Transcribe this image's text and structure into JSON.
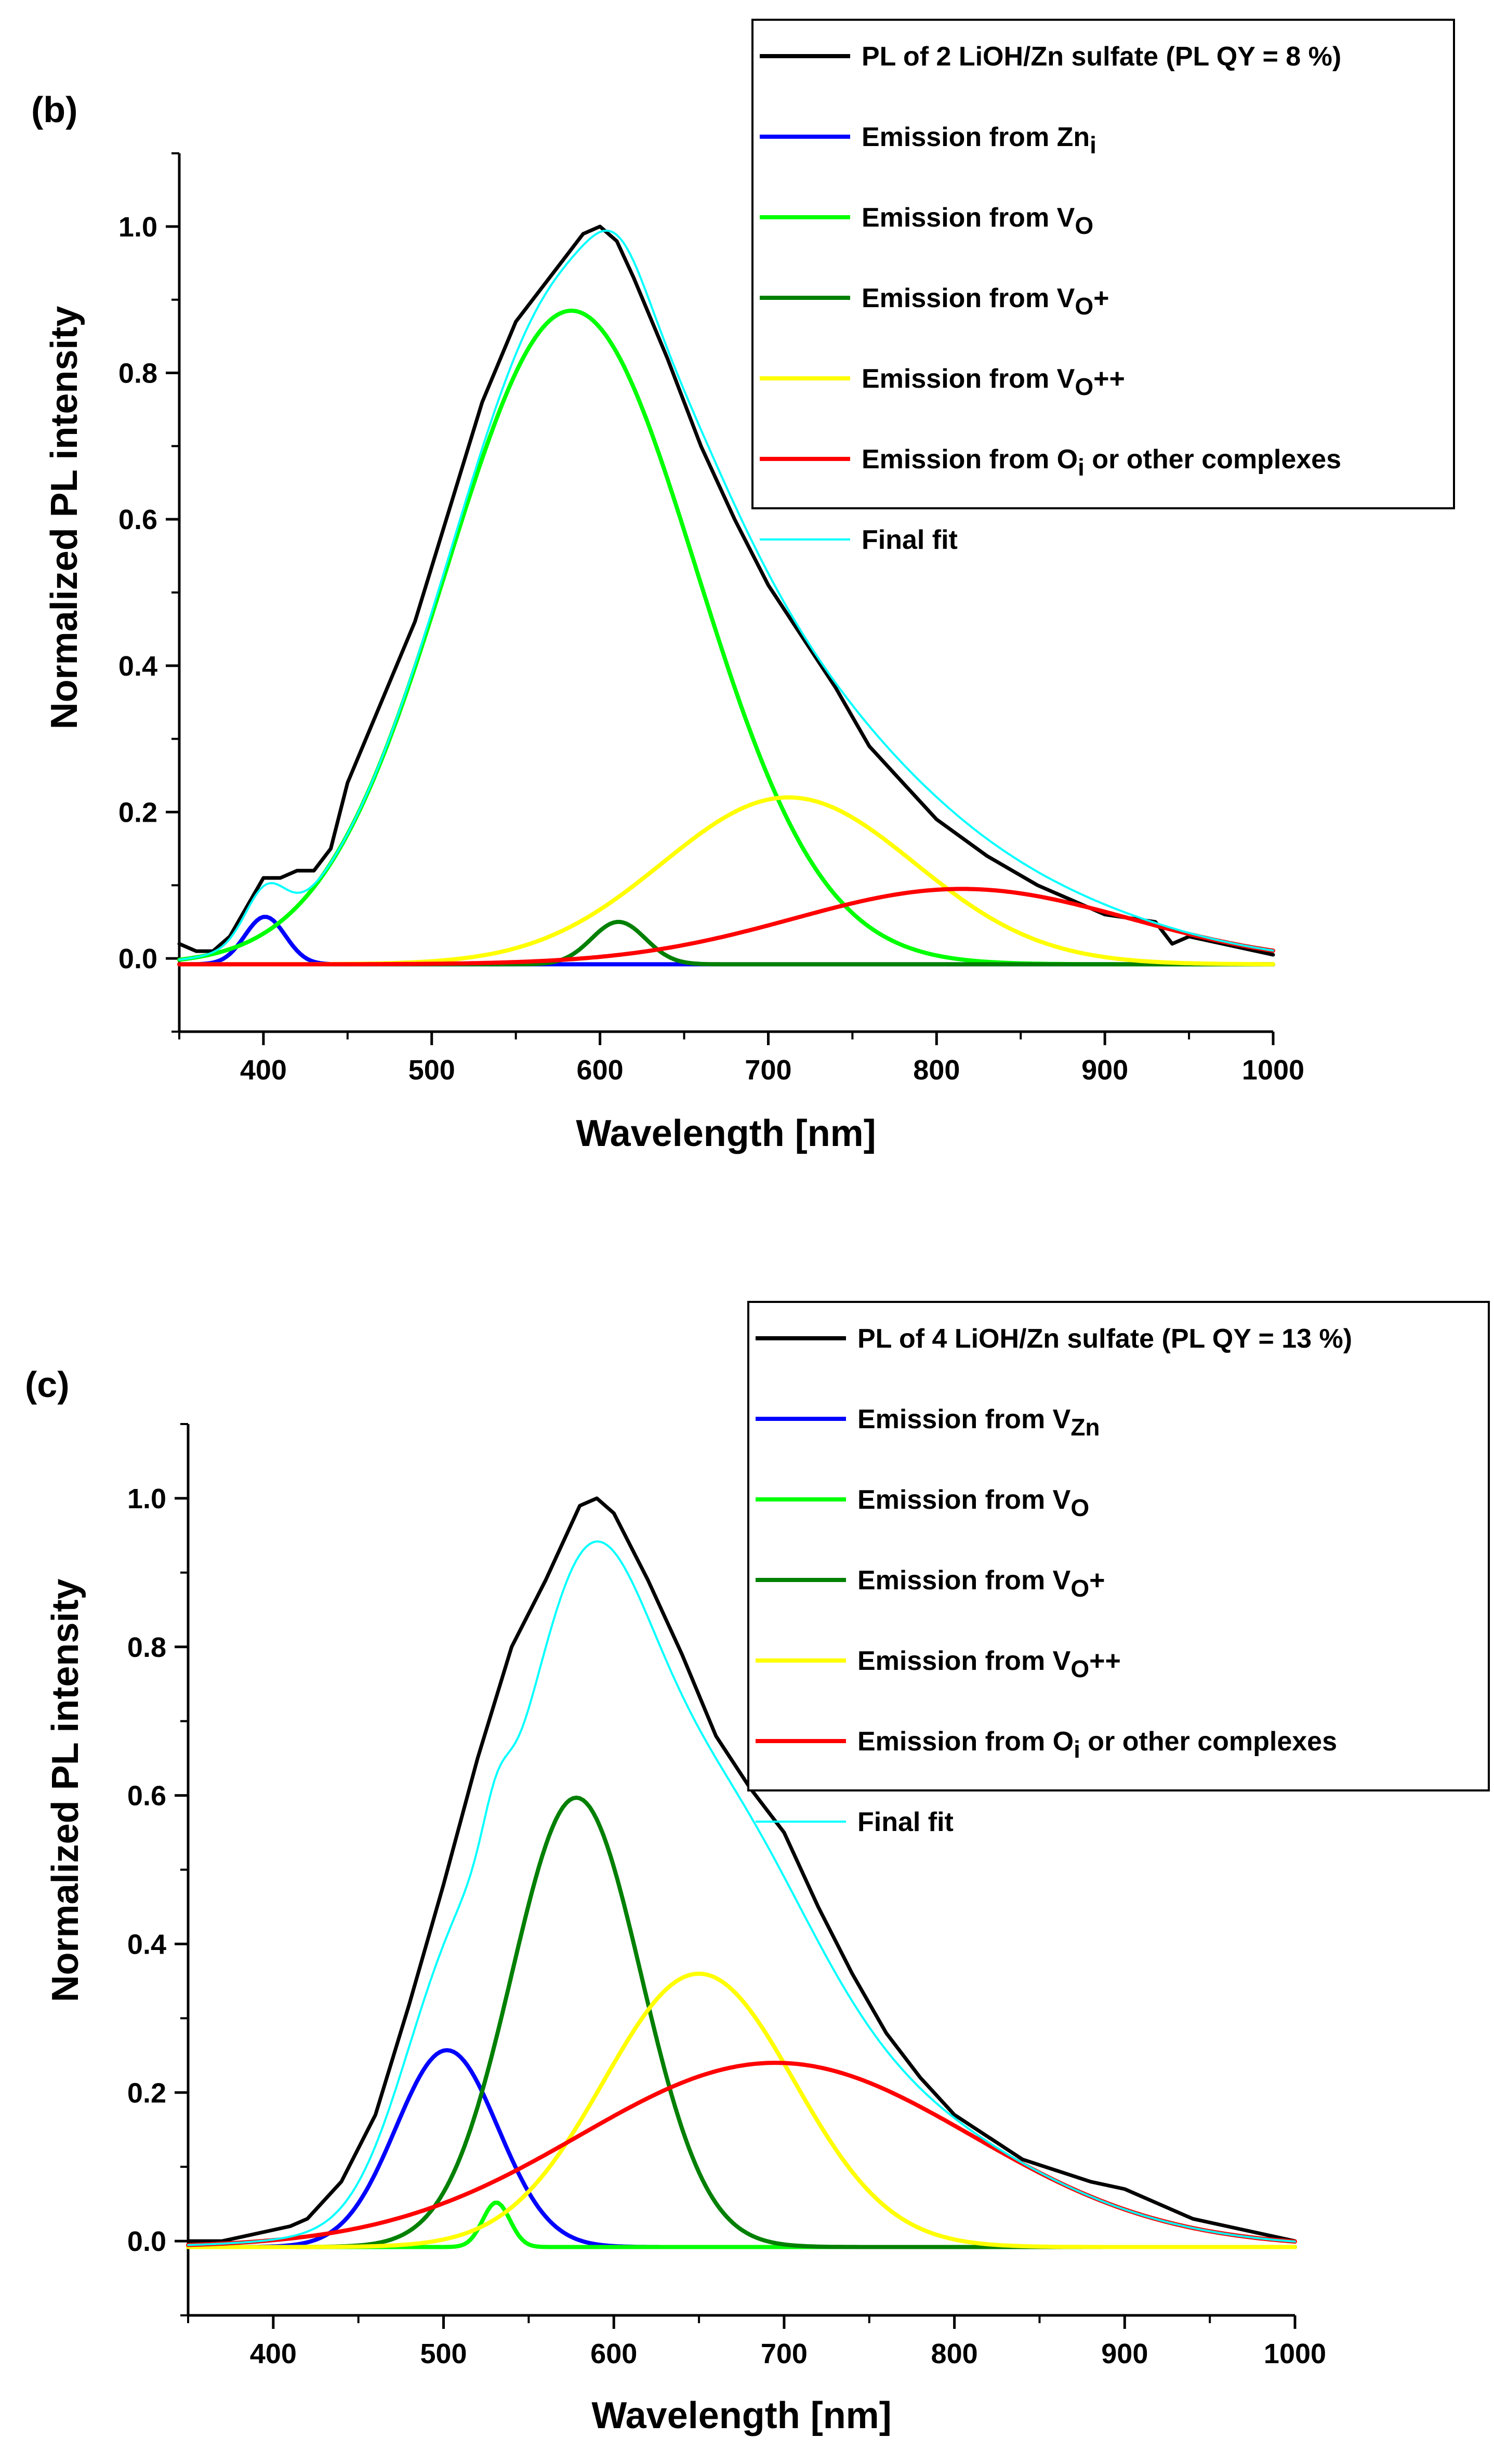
{
  "chart_data": [
    {
      "panel_label": "(b)",
      "type": "line",
      "xlabel": "Wavelength [nm]",
      "ylabel": "Normalized PL intensity",
      "xlim": [
        350,
        1000
      ],
      "ylim": [
        -0.1,
        1.1
      ],
      "xticks": [
        400,
        500,
        600,
        700,
        800,
        900,
        1000
      ],
      "yticks": [
        0.0,
        0.2,
        0.4,
        0.6,
        0.8,
        1.0
      ],
      "xtick_labels": [
        "400",
        "500",
        "600",
        "700",
        "800",
        "900",
        "1000"
      ],
      "ytick_labels": [
        "0.0",
        "0.2",
        "0.4",
        "0.6",
        "0.8",
        "1.0"
      ],
      "legend_position": "top-right",
      "series": [
        {
          "name": "PL of 2 LiOH/Zn sulfate (PL QY = 8 %)",
          "legend_main": "PL of 2 LiOH/Zn sulfate (PL QY = 8 %)",
          "legend_sub": "",
          "legend_tail": "",
          "color": "#000000",
          "x": [
            350,
            360,
            370,
            380,
            390,
            400,
            410,
            420,
            430,
            440,
            450,
            470,
            490,
            510,
            530,
            550,
            570,
            580,
            590,
            600,
            610,
            620,
            640,
            660,
            680,
            700,
            720,
            740,
            760,
            780,
            800,
            830,
            860,
            900,
            930,
            940,
            950,
            970,
            1000
          ],
          "y": [
            0.02,
            0.01,
            0.01,
            0.03,
            0.07,
            0.11,
            0.11,
            0.12,
            0.12,
            0.15,
            0.24,
            0.35,
            0.46,
            0.61,
            0.76,
            0.87,
            0.93,
            0.96,
            0.99,
            1.0,
            0.98,
            0.93,
            0.82,
            0.7,
            0.6,
            0.51,
            0.44,
            0.37,
            0.29,
            0.24,
            0.19,
            0.14,
            0.1,
            0.06,
            0.05,
            0.02,
            0.03,
            0.02,
            0.005
          ]
        },
        {
          "name": "Emission from Zn_i",
          "legend_main": "Emission from Zn",
          "legend_sub": "i",
          "legend_tail": "",
          "color": "#0000ff",
          "peak": {
            "center": 401,
            "height": 0.065,
            "sigma": 12,
            "baseline": -0.008
          }
        },
        {
          "name": "Emission from V_O",
          "legend_main": "Emission from V",
          "legend_sub": "O",
          "legend_tail": "",
          "color": "#00ff00",
          "peak": {
            "center": 583,
            "height": 0.893,
            "sigma": 74,
            "baseline": -0.008
          }
        },
        {
          "name": "Emission from V_O+",
          "legend_main": "Emission from V",
          "legend_sub": "O",
          "legend_tail": "+",
          "color": "#008000",
          "peak": {
            "center": 611,
            "height": 0.058,
            "sigma": 16,
            "baseline": -0.008
          }
        },
        {
          "name": "Emission from V_O++",
          "legend_main": "Emission from V",
          "legend_sub": "O",
          "legend_tail": "++",
          "color": "#ffff00",
          "peak": {
            "center": 712,
            "height": 0.228,
            "sigma": 75,
            "baseline": -0.008
          }
        },
        {
          "name": "Emission from O_i or other complexes",
          "legend_main": "Emission from O",
          "legend_sub": "i",
          "legend_tail": " or other complexes",
          "color": "#ff0000",
          "peak": {
            "center": 815,
            "height": 0.103,
            "sigma": 100,
            "baseline": -0.008
          }
        },
        {
          "name": "Final fit",
          "legend_main": "Final fit",
          "legend_sub": "",
          "legend_tail": "",
          "color": "#00ffff",
          "sum_of_components": true
        }
      ]
    },
    {
      "panel_label": "(c)",
      "type": "line",
      "xlabel": "Wavelength [nm]",
      "ylabel": "Normalized PL intensity",
      "xlim": [
        350,
        1000
      ],
      "ylim": [
        -0.1,
        1.1
      ],
      "xticks": [
        400,
        500,
        600,
        700,
        800,
        900,
        1000
      ],
      "yticks": [
        0.0,
        0.2,
        0.4,
        0.6,
        0.8,
        1.0
      ],
      "xtick_labels": [
        "400",
        "500",
        "600",
        "700",
        "800",
        "900",
        "1000"
      ],
      "ytick_labels": [
        "0.0",
        "0.2",
        "0.4",
        "0.6",
        "0.8",
        "1.0"
      ],
      "legend_position": "top-right",
      "series": [
        {
          "name": "PL of 4 LiOH/Zn sulfate (PL QY = 13 %)",
          "legend_main": "PL of 4 LiOH/Zn sulfate (PL QY = 13 %)",
          "legend_sub": "",
          "legend_tail": "",
          "color": "#000000",
          "x": [
            350,
            370,
            390,
            410,
            420,
            440,
            460,
            480,
            500,
            520,
            540,
            560,
            580,
            590,
            600,
            620,
            640,
            660,
            680,
            700,
            720,
            740,
            760,
            780,
            800,
            840,
            880,
            900,
            920,
            940,
            960,
            980,
            1000
          ],
          "y": [
            0.0,
            0.0,
            0.01,
            0.02,
            0.03,
            0.08,
            0.17,
            0.32,
            0.48,
            0.65,
            0.8,
            0.89,
            0.99,
            1.0,
            0.98,
            0.89,
            0.79,
            0.68,
            0.61,
            0.55,
            0.45,
            0.36,
            0.28,
            0.22,
            0.17,
            0.11,
            0.08,
            0.07,
            0.05,
            0.03,
            0.02,
            0.01,
            0.0
          ]
        },
        {
          "name": "Emission from V_Zn",
          "legend_main": "Emission from V",
          "legend_sub": "Zn",
          "legend_tail": "",
          "color": "#0000ff",
          "peak": {
            "center": 502,
            "height": 0.265,
            "sigma": 30,
            "baseline": -0.008
          }
        },
        {
          "name": "Emission from V_O",
          "legend_main": "Emission from V",
          "legend_sub": "O",
          "legend_tail": "",
          "color": "#00ff00",
          "peak": {
            "center": 531,
            "height": 0.06,
            "sigma": 8,
            "baseline": -0.008
          }
        },
        {
          "name": "Emission from V_O+",
          "legend_main": "Emission from V",
          "legend_sub": "O",
          "legend_tail": "+",
          "color": "#008000",
          "peak": {
            "center": 578,
            "height": 0.605,
            "sigma": 38,
            "baseline": -0.008
          }
        },
        {
          "name": "Emission from V_O++",
          "legend_main": "Emission from V",
          "legend_sub": "O",
          "legend_tail": "++",
          "color": "#ffff00",
          "peak": {
            "center": 650,
            "height": 0.368,
            "sigma": 56,
            "baseline": -0.008
          }
        },
        {
          "name": "Emission from O_i or other complexes",
          "legend_main": "Emission from O",
          "legend_sub": "i",
          "legend_tail": " or other complexes",
          "color": "#ff0000",
          "peak": {
            "center": 695,
            "height": 0.248,
            "sigma": 115,
            "baseline": -0.008
          }
        },
        {
          "name": "Final fit",
          "legend_main": "Final fit",
          "legend_sub": "",
          "legend_tail": "",
          "color": "#00ffff",
          "sum_of_components": true
        }
      ]
    }
  ]
}
